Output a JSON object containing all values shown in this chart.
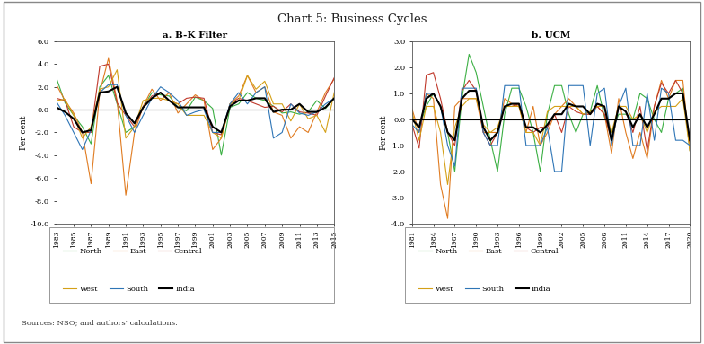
{
  "title": "Chart 5: Business Cycles",
  "source_text": "Sources: NSO; and authors' calculations.",
  "panel_a": {
    "title": "a. B-K Filter",
    "ylabel": "Per cent",
    "years": [
      1983,
      1984,
      1985,
      1986,
      1987,
      1988,
      1989,
      1990,
      1991,
      1992,
      1993,
      1994,
      1995,
      1996,
      1997,
      1998,
      1999,
      2000,
      2001,
      2002,
      2003,
      2004,
      2005,
      2006,
      2007,
      2008,
      2009,
      2010,
      2011,
      2012,
      2013,
      2014,
      2015
    ],
    "xticks": [
      1983,
      1985,
      1987,
      1989,
      1991,
      1993,
      1995,
      1997,
      1999,
      2001,
      2003,
      2005,
      2007,
      2009,
      2011,
      2013,
      2015
    ],
    "ylim": [
      -10.0,
      6.0
    ],
    "yticks": [
      -10.0,
      -8.0,
      -6.0,
      -4.0,
      -2.0,
      0.0,
      2.0,
      4.0,
      6.0
    ],
    "series": {
      "North": [
        2.8,
        0.6,
        -0.5,
        -1.5,
        -3.0,
        2.0,
        3.0,
        0.5,
        -2.0,
        -1.5,
        0.2,
        1.5,
        1.3,
        1.2,
        0.2,
        -0.1,
        1.1,
        0.8,
        0.1,
        -4.0,
        0.2,
        0.5,
        1.5,
        1.0,
        0.8,
        0.3,
        -0.3,
        -0.2,
        -0.4,
        -0.2,
        0.8,
        0.1,
        1.0
      ],
      "East": [
        2.2,
        0.8,
        -0.3,
        -2.0,
        -6.5,
        1.5,
        4.5,
        0.8,
        -7.5,
        -2.0,
        0.3,
        1.8,
        0.8,
        1.5,
        -0.3,
        0.5,
        1.3,
        0.8,
        -3.5,
        -2.5,
        0.5,
        1.2,
        3.0,
        1.5,
        2.0,
        -0.2,
        -0.5,
        -2.5,
        -1.5,
        -2.0,
        -0.2,
        1.5,
        2.7
      ],
      "Central": [
        1.0,
        0.8,
        -1.5,
        -2.0,
        -2.0,
        3.8,
        4.0,
        0.6,
        -0.5,
        -1.5,
        0.2,
        1.2,
        1.5,
        0.8,
        0.5,
        1.0,
        1.1,
        1.0,
        -2.0,
        -2.2,
        0.5,
        1.0,
        0.8,
        0.5,
        0.2,
        0.3,
        -0.2,
        0.5,
        -0.2,
        -0.3,
        -0.5,
        1.2,
        2.8
      ],
      "West": [
        0.8,
        0.9,
        -0.5,
        -2.5,
        -1.5,
        1.8,
        2.0,
        3.5,
        -2.5,
        -1.5,
        0.8,
        1.0,
        1.0,
        0.8,
        0.5,
        -0.5,
        -0.5,
        -0.5,
        -2.0,
        -2.5,
        0.5,
        0.8,
        3.0,
        1.8,
        2.5,
        0.5,
        0.5,
        -1.0,
        0.5,
        -0.8,
        -0.5,
        -2.0,
        1.5
      ],
      "South": [
        0.7,
        -0.5,
        -2.0,
        -3.5,
        -1.8,
        1.5,
        2.2,
        2.2,
        -0.5,
        -2.0,
        -0.5,
        1.0,
        2.0,
        1.5,
        0.8,
        -0.5,
        -0.2,
        0.0,
        -2.0,
        -2.0,
        0.5,
        1.5,
        0.5,
        1.5,
        2.0,
        -2.5,
        -2.0,
        0.5,
        -0.3,
        -0.5,
        -0.2,
        0.5,
        1.0
      ],
      "India": [
        0.2,
        -0.2,
        -0.8,
        -2.0,
        -1.8,
        1.5,
        1.6,
        2.0,
        -0.3,
        -1.2,
        0.2,
        1.0,
        1.5,
        0.8,
        0.2,
        0.2,
        0.2,
        0.2,
        -1.5,
        -2.0,
        0.3,
        0.8,
        0.8,
        1.0,
        1.0,
        -0.2,
        0.0,
        0.0,
        0.5,
        -0.2,
        -0.2,
        0.2,
        1.0
      ]
    },
    "colors": {
      "North": "#3cb044",
      "East": "#e07b20",
      "Central": "#c0392b",
      "West": "#d4a017",
      "South": "#2e75b6",
      "India": "#000000"
    }
  },
  "panel_b": {
    "title": "b. UCM",
    "ylabel": "Per cent",
    "years": [
      1981,
      1982,
      1983,
      1984,
      1985,
      1986,
      1987,
      1988,
      1989,
      1990,
      1991,
      1992,
      1993,
      1994,
      1995,
      1996,
      1997,
      1998,
      1999,
      2000,
      2001,
      2002,
      2003,
      2004,
      2005,
      2006,
      2007,
      2008,
      2009,
      2010,
      2011,
      2012,
      2013,
      2014,
      2015,
      2016,
      2017,
      2018,
      2019,
      2020
    ],
    "xticks": [
      1981,
      1984,
      1987,
      1990,
      1993,
      1996,
      1999,
      2002,
      2005,
      2008,
      2011,
      2014,
      2017,
      2020
    ],
    "ylim": [
      -4.0,
      3.0
    ],
    "yticks": [
      -4.0,
      -3.0,
      -2.0,
      -1.0,
      0.0,
      1.0,
      2.0,
      3.0
    ],
    "series": {
      "North": [
        0.0,
        -0.3,
        0.5,
        1.0,
        0.5,
        -0.5,
        -2.0,
        0.8,
        2.5,
        1.8,
        0.5,
        -0.8,
        -2.0,
        0.2,
        1.2,
        1.2,
        0.5,
        -0.5,
        -2.0,
        0.2,
        1.3,
        1.3,
        0.2,
        -0.5,
        0.2,
        0.3,
        1.3,
        0.1,
        -0.5,
        0.2,
        0.2,
        0.0,
        1.0,
        0.8,
        0.0,
        -0.5,
        0.8,
        1.0,
        1.2,
        -1.2
      ],
      "East": [
        0.4,
        -0.5,
        1.0,
        0.8,
        -2.5,
        -3.8,
        0.5,
        0.8,
        0.8,
        0.8,
        -0.5,
        -0.5,
        -0.5,
        0.8,
        0.6,
        0.5,
        -0.5,
        0.5,
        -1.0,
        -0.5,
        0.2,
        0.5,
        0.8,
        0.5,
        0.2,
        0.2,
        0.5,
        0.2,
        -1.3,
        0.8,
        -0.5,
        -1.5,
        -0.5,
        -1.5,
        0.5,
        1.5,
        0.8,
        1.5,
        1.5,
        -1.2
      ],
      "Central": [
        -0.2,
        -1.1,
        1.7,
        1.8,
        0.8,
        -0.5,
        -1.0,
        1.1,
        1.5,
        1.1,
        -0.5,
        -1.0,
        -0.5,
        0.5,
        0.5,
        0.6,
        -0.3,
        -0.5,
        -0.3,
        -0.3,
        0.2,
        -0.5,
        0.5,
        0.3,
        0.2,
        0.2,
        0.5,
        0.2,
        -0.8,
        0.5,
        0.3,
        -0.5,
        0.5,
        -1.2,
        0.5,
        1.4,
        1.0,
        1.5,
        1.0,
        -1.0
      ],
      "West": [
        0.3,
        -0.8,
        0.5,
        0.5,
        -0.5,
        -2.5,
        -0.3,
        0.5,
        0.8,
        0.8,
        -0.2,
        -0.5,
        -0.3,
        0.5,
        0.5,
        0.5,
        -0.5,
        -0.5,
        -1.0,
        0.3,
        0.5,
        0.5,
        0.5,
        0.5,
        0.2,
        0.3,
        0.5,
        0.5,
        -0.5,
        0.5,
        0.5,
        0.0,
        0.2,
        -0.5,
        0.3,
        0.5,
        0.5,
        0.5,
        0.8,
        -1.2
      ],
      "South": [
        -0.2,
        -0.5,
        1.0,
        1.0,
        0.5,
        -1.0,
        -1.8,
        1.2,
        1.2,
        1.2,
        -0.5,
        -1.0,
        -1.0,
        1.3,
        1.3,
        1.3,
        -1.0,
        -1.0,
        -1.0,
        -0.3,
        -2.0,
        -2.0,
        1.3,
        1.3,
        1.3,
        -1.0,
        1.0,
        1.2,
        -1.0,
        0.5,
        1.2,
        -1.0,
        -1.0,
        1.0,
        -0.8,
        1.2,
        1.0,
        -0.8,
        -0.8,
        -1.0
      ],
      "India": [
        0.0,
        -0.3,
        0.8,
        1.0,
        0.5,
        -0.5,
        -0.8,
        0.8,
        1.1,
        1.1,
        -0.3,
        -0.8,
        -0.5,
        0.5,
        0.6,
        0.6,
        -0.3,
        -0.3,
        -0.5,
        -0.2,
        0.2,
        0.2,
        0.6,
        0.5,
        0.5,
        0.2,
        0.6,
        0.5,
        -0.8,
        0.5,
        0.3,
        -0.3,
        0.2,
        -0.3,
        0.2,
        0.8,
        0.8,
        1.0,
        1.0,
        -0.8
      ]
    },
    "colors": {
      "North": "#3cb044",
      "East": "#e07b20",
      "Central": "#c0392b",
      "West": "#d4a017",
      "South": "#2e75b6",
      "India": "#000000"
    }
  },
  "legend_order": [
    "North",
    "East",
    "Central",
    "West",
    "South",
    "India"
  ],
  "bg_color": "#ffffff",
  "outer_border_color": "#aaaaaa",
  "panel_border_color": "#888888"
}
